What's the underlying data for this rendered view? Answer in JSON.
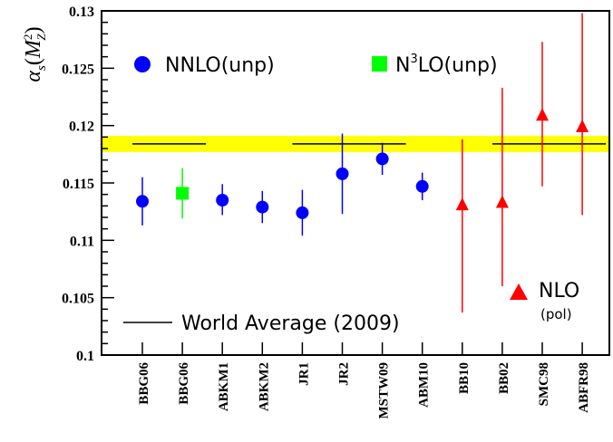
{
  "chart_data": {
    "type": "scatter",
    "ylabel": "αs(M²Z)",
    "ylim": [
      0.1,
      0.13
    ],
    "yticks": [
      "0.1",
      "0.105",
      "0.11",
      "0.115",
      "0.12",
      "0.125",
      "0.13"
    ],
    "categories": [
      "BBG06",
      "BBG06",
      "ABKM1",
      "ABKM2",
      "JR1",
      "JR2",
      "MSTW09",
      "ABM10",
      "BB10",
      "BB02",
      "SMC98",
      "ABFR98"
    ],
    "world_average": {
      "value": 0.1184,
      "band": [
        0.1177,
        0.1191
      ],
      "label": "World Average (2009)",
      "band_color": "#ffff00"
    },
    "series": [
      {
        "name": "NNLO(unp)",
        "marker": "circle",
        "color": "#0000ff",
        "points": [
          {
            "category": "BBG06",
            "y": 0.1134,
            "err_low": 0.1113,
            "err_high": 0.1155
          },
          {
            "category": "ABKM1",
            "y": 0.1135,
            "err_low": 0.1122,
            "err_high": 0.1149
          },
          {
            "category": "ABKM2",
            "y": 0.1129,
            "err_low": 0.1115,
            "err_high": 0.1143
          },
          {
            "category": "JR1",
            "y": 0.1124,
            "err_low": 0.1104,
            "err_high": 0.1144
          },
          {
            "category": "JR2",
            "y": 0.1158,
            "err_low": 0.1123,
            "err_high": 0.1193
          },
          {
            "category": "MSTW09",
            "y": 0.1171,
            "err_low": 0.1157,
            "err_high": 0.1185
          },
          {
            "category": "ABM10",
            "y": 0.1147,
            "err_low": 0.1135,
            "err_high": 0.1159
          }
        ]
      },
      {
        "name": "N³LO(unp)",
        "legend_base": "N",
        "legend_sup": "3",
        "legend_rest": "LO(unp)",
        "marker": "square",
        "color": "#00ff00",
        "points": [
          {
            "category": "BBG06",
            "x_index": 1,
            "y": 0.1141,
            "err_low": 0.1119,
            "err_high": 0.1163
          }
        ]
      },
      {
        "name": "NLO (pol)",
        "legend_line1": "NLO",
        "legend_line2": "(pol)",
        "marker": "triangle",
        "color": "#ff0000",
        "points": [
          {
            "category": "BB10",
            "y": 0.1131,
            "err_low": 0.1037,
            "err_high": 0.1188
          },
          {
            "category": "BB02",
            "y": 0.1133,
            "err_low": 0.106,
            "err_high": 0.1233
          },
          {
            "category": "SMC98",
            "y": 0.1209,
            "err_low": 0.1147,
            "err_high": 0.1273
          },
          {
            "category": "ABFR98",
            "y": 0.1199,
            "err_low": 0.1122,
            "err_high": 0.1298
          }
        ]
      }
    ],
    "legend_placement": "inside"
  }
}
